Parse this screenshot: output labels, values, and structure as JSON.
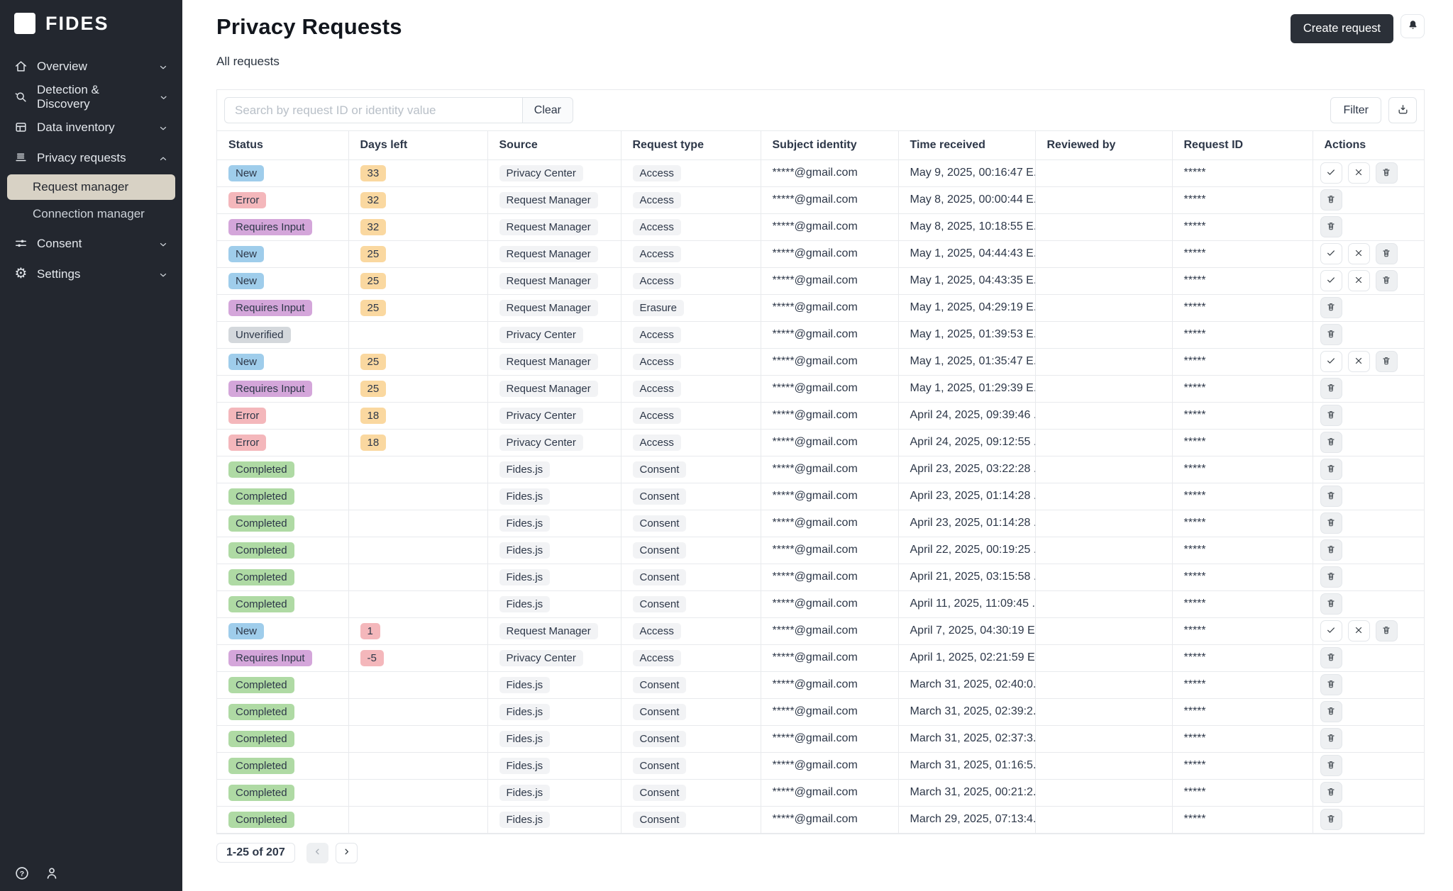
{
  "app": {
    "brand": "FIDES"
  },
  "sidebar": {
    "items": [
      {
        "label": "Overview"
      },
      {
        "label": "Detection & Discovery"
      },
      {
        "label": "Data inventory"
      },
      {
        "label": "Privacy requests",
        "children": [
          {
            "label": "Request manager"
          },
          {
            "label": "Connection manager"
          }
        ]
      },
      {
        "label": "Consent"
      },
      {
        "label": "Settings"
      }
    ]
  },
  "header": {
    "title": "Privacy Requests",
    "subtitle": "All requests",
    "create_button": "Create request"
  },
  "toolbar": {
    "search_placeholder": "Search by request ID or identity value",
    "search_value": "",
    "clear_button": "Clear",
    "filter_button": "Filter"
  },
  "table": {
    "columns": [
      "Status",
      "Days left",
      "Source",
      "Request type",
      "Subject identity",
      "Time received",
      "Reviewed by",
      "Request ID",
      "Actions"
    ],
    "rows": [
      {
        "status": "New",
        "status_variant": "blue",
        "days": "33",
        "days_variant": "orange",
        "source": "Privacy Center",
        "request_type": "Access",
        "identity": "*****@gmail.com",
        "time": "May 9, 2025, 00:16:47 E...",
        "reviewed_by": "",
        "request_id": "*****",
        "actions": [
          "approve",
          "deny",
          "delete"
        ]
      },
      {
        "status": "Error",
        "status_variant": "red",
        "days": "32",
        "days_variant": "orange",
        "source": "Request Manager",
        "request_type": "Access",
        "identity": "*****@gmail.com",
        "time": "May 8, 2025, 00:00:44 E...",
        "reviewed_by": "",
        "request_id": "*****",
        "actions": [
          "delete"
        ]
      },
      {
        "status": "Requires Input",
        "status_variant": "purple",
        "days": "32",
        "days_variant": "orange",
        "source": "Request Manager",
        "request_type": "Access",
        "identity": "*****@gmail.com",
        "time": "May 8, 2025, 10:18:55 E...",
        "reviewed_by": "",
        "request_id": "*****",
        "actions": [
          "delete"
        ]
      },
      {
        "status": "New",
        "status_variant": "blue",
        "days": "25",
        "days_variant": "orange",
        "source": "Request Manager",
        "request_type": "Access",
        "identity": "*****@gmail.com",
        "time": "May 1, 2025, 04:44:43 E...",
        "reviewed_by": "",
        "request_id": "*****",
        "actions": [
          "approve",
          "deny",
          "delete"
        ]
      },
      {
        "status": "New",
        "status_variant": "blue",
        "days": "25",
        "days_variant": "orange",
        "source": "Request Manager",
        "request_type": "Access",
        "identity": "*****@gmail.com",
        "time": "May 1, 2025, 04:43:35 E...",
        "reviewed_by": "",
        "request_id": "*****",
        "actions": [
          "approve",
          "deny",
          "delete"
        ]
      },
      {
        "status": "Requires Input",
        "status_variant": "purple",
        "days": "25",
        "days_variant": "orange",
        "source": "Request Manager",
        "request_type": "Erasure",
        "identity": "*****@gmail.com",
        "time": "May 1, 2025, 04:29:19 E...",
        "reviewed_by": "",
        "request_id": "*****",
        "actions": [
          "delete"
        ]
      },
      {
        "status": "Unverified",
        "status_variant": "gray",
        "days": "",
        "days_variant": "",
        "source": "Privacy Center",
        "request_type": "Access",
        "identity": "*****@gmail.com",
        "time": "May 1, 2025, 01:39:53 E...",
        "reviewed_by": "",
        "request_id": "*****",
        "actions": [
          "delete"
        ]
      },
      {
        "status": "New",
        "status_variant": "blue",
        "days": "25",
        "days_variant": "orange",
        "source": "Request Manager",
        "request_type": "Access",
        "identity": "*****@gmail.com",
        "time": "May 1, 2025, 01:35:47 E...",
        "reviewed_by": "",
        "request_id": "*****",
        "actions": [
          "approve",
          "deny",
          "delete"
        ]
      },
      {
        "status": "Requires Input",
        "status_variant": "purple",
        "days": "25",
        "days_variant": "orange",
        "source": "Request Manager",
        "request_type": "Access",
        "identity": "*****@gmail.com",
        "time": "May 1, 2025, 01:29:39 E...",
        "reviewed_by": "",
        "request_id": "*****",
        "actions": [
          "delete"
        ]
      },
      {
        "status": "Error",
        "status_variant": "red",
        "days": "18",
        "days_variant": "orange",
        "source": "Privacy Center",
        "request_type": "Access",
        "identity": "*****@gmail.com",
        "time": "April 24, 2025, 09:39:46 ...",
        "reviewed_by": "",
        "request_id": "*****",
        "actions": [
          "delete"
        ]
      },
      {
        "status": "Error",
        "status_variant": "red",
        "days": "18",
        "days_variant": "orange",
        "source": "Privacy Center",
        "request_type": "Access",
        "identity": "*****@gmail.com",
        "time": "April 24, 2025, 09:12:55 ...",
        "reviewed_by": "",
        "request_id": "*****",
        "actions": [
          "delete"
        ]
      },
      {
        "status": "Completed",
        "status_variant": "green",
        "days": "",
        "days_variant": "",
        "source": "Fides.js",
        "request_type": "Consent",
        "identity": "*****@gmail.com",
        "time": "April 23, 2025, 03:22:28 ...",
        "reviewed_by": "",
        "request_id": "*****",
        "actions": [
          "delete"
        ]
      },
      {
        "status": "Completed",
        "status_variant": "green",
        "days": "",
        "days_variant": "",
        "source": "Fides.js",
        "request_type": "Consent",
        "identity": "*****@gmail.com",
        "time": "April 23, 2025, 01:14:28 ...",
        "reviewed_by": "",
        "request_id": "*****",
        "actions": [
          "delete"
        ]
      },
      {
        "status": "Completed",
        "status_variant": "green",
        "days": "",
        "days_variant": "",
        "source": "Fides.js",
        "request_type": "Consent",
        "identity": "*****@gmail.com",
        "time": "April 23, 2025, 01:14:28 ...",
        "reviewed_by": "",
        "request_id": "*****",
        "actions": [
          "delete"
        ]
      },
      {
        "status": "Completed",
        "status_variant": "green",
        "days": "",
        "days_variant": "",
        "source": "Fides.js",
        "request_type": "Consent",
        "identity": "*****@gmail.com",
        "time": "April 22, 2025, 00:19:25 ...",
        "reviewed_by": "",
        "request_id": "*****",
        "actions": [
          "delete"
        ]
      },
      {
        "status": "Completed",
        "status_variant": "green",
        "days": "",
        "days_variant": "",
        "source": "Fides.js",
        "request_type": "Consent",
        "identity": "*****@gmail.com",
        "time": "April 21, 2025, 03:15:58 ...",
        "reviewed_by": "",
        "request_id": "*****",
        "actions": [
          "delete"
        ]
      },
      {
        "status": "Completed",
        "status_variant": "green",
        "days": "",
        "days_variant": "",
        "source": "Fides.js",
        "request_type": "Consent",
        "identity": "*****@gmail.com",
        "time": "April 11, 2025, 11:09:45 ...",
        "reviewed_by": "",
        "request_id": "*****",
        "actions": [
          "delete"
        ]
      },
      {
        "status": "New",
        "status_variant": "blue",
        "days": "1",
        "days_variant": "red",
        "source": "Request Manager",
        "request_type": "Access",
        "identity": "*****@gmail.com",
        "time": "April 7, 2025, 04:30:19 E...",
        "reviewed_by": "",
        "request_id": "*****",
        "actions": [
          "approve",
          "deny",
          "delete"
        ]
      },
      {
        "status": "Requires Input",
        "status_variant": "purple",
        "days": "-5",
        "days_variant": "red",
        "source": "Privacy Center",
        "request_type": "Access",
        "identity": "*****@gmail.com",
        "time": "April 1, 2025, 02:21:59 E...",
        "reviewed_by": "",
        "request_id": "*****",
        "actions": [
          "delete"
        ]
      },
      {
        "status": "Completed",
        "status_variant": "green",
        "days": "",
        "days_variant": "",
        "source": "Fides.js",
        "request_type": "Consent",
        "identity": "*****@gmail.com",
        "time": "March 31, 2025, 02:40:0...",
        "reviewed_by": "",
        "request_id": "*****",
        "actions": [
          "delete"
        ]
      },
      {
        "status": "Completed",
        "status_variant": "green",
        "days": "",
        "days_variant": "",
        "source": "Fides.js",
        "request_type": "Consent",
        "identity": "*****@gmail.com",
        "time": "March 31, 2025, 02:39:2...",
        "reviewed_by": "",
        "request_id": "*****",
        "actions": [
          "delete"
        ]
      },
      {
        "status": "Completed",
        "status_variant": "green",
        "days": "",
        "days_variant": "",
        "source": "Fides.js",
        "request_type": "Consent",
        "identity": "*****@gmail.com",
        "time": "March 31, 2025, 02:37:3...",
        "reviewed_by": "",
        "request_id": "*****",
        "actions": [
          "delete"
        ]
      },
      {
        "status": "Completed",
        "status_variant": "green",
        "days": "",
        "days_variant": "",
        "source": "Fides.js",
        "request_type": "Consent",
        "identity": "*****@gmail.com",
        "time": "March 31, 2025, 01:16:5...",
        "reviewed_by": "",
        "request_id": "*****",
        "actions": [
          "delete"
        ]
      },
      {
        "status": "Completed",
        "status_variant": "green",
        "days": "",
        "days_variant": "",
        "source": "Fides.js",
        "request_type": "Consent",
        "identity": "*****@gmail.com",
        "time": "March 31, 2025, 00:21:2...",
        "reviewed_by": "",
        "request_id": "*****",
        "actions": [
          "delete"
        ]
      },
      {
        "status": "Completed",
        "status_variant": "green",
        "days": "",
        "days_variant": "",
        "source": "Fides.js",
        "request_type": "Consent",
        "identity": "*****@gmail.com",
        "time": "March 29, 2025, 07:13:4...",
        "reviewed_by": "",
        "request_id": "*****",
        "actions": [
          "delete"
        ]
      }
    ]
  },
  "pagination": {
    "range_label": "1-25 of 207"
  },
  "colors": {
    "sidebar_bg": "#23272f",
    "active_item_bg": "#d8d2c5",
    "accent_dark": "#2b3038",
    "badge_blue": "#9fcdeb",
    "badge_red": "#f4b7bb",
    "badge_purple": "#d4a6da",
    "badge_gray": "#d4d8dc",
    "badge_green": "#afdaa4",
    "badge_orange": "#fad8a0",
    "chip_gray": "#f2f3f5"
  }
}
